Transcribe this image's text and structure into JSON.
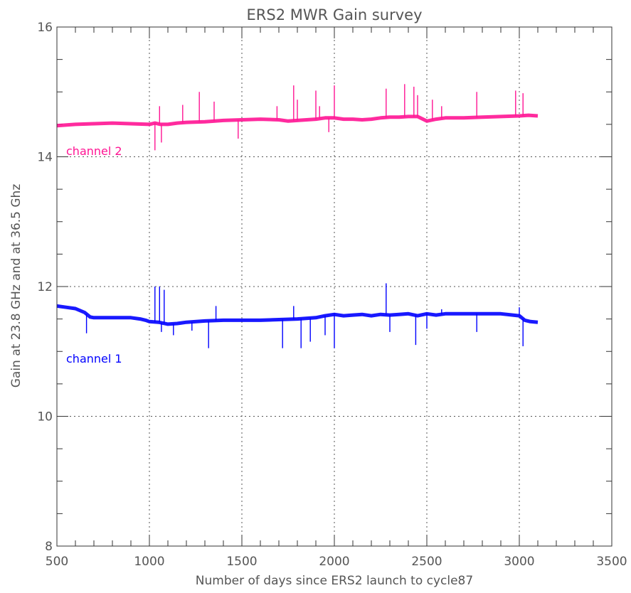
{
  "chart_data": {
    "type": "line",
    "title": "ERS2  MWR  Gain survey",
    "xlabel": "Number of days since ERS2 launch to cycle87",
    "ylabel": "Gain at 23.8 GHz and at 36.5 Ghz",
    "xlim": [
      500,
      3500
    ],
    "ylim": [
      8,
      16
    ],
    "x_ticks": [
      500,
      1000,
      1500,
      2000,
      2500,
      3000,
      3500
    ],
    "x_tick_labels": [
      "500",
      "1000",
      "1500",
      "2000",
      "2500",
      "3000",
      "3500"
    ],
    "y_ticks": [
      8,
      10,
      12,
      14,
      16
    ],
    "y_tick_labels": [
      "8",
      "10",
      "12",
      "14",
      "16"
    ],
    "x_gridlines": [
      1000,
      1500,
      2000,
      2500,
      3000
    ],
    "y_gridlines": [
      10,
      12,
      14
    ],
    "grid": "dotted",
    "annotations": [
      {
        "text": "channel 2",
        "series": "channel 2"
      },
      {
        "text": "channel 1",
        "series": "channel 1"
      }
    ],
    "series": [
      {
        "name": "channel 2",
        "color": "#ff1493",
        "x": [
          500,
          600,
          700,
          800,
          900,
          1000,
          1030,
          1060,
          1100,
          1150,
          1200,
          1300,
          1400,
          1500,
          1600,
          1700,
          1750,
          1800,
          1850,
          1900,
          1950,
          2000,
          2050,
          2100,
          2150,
          2200,
          2250,
          2300,
          2350,
          2400,
          2450,
          2500,
          2550,
          2600,
          2700,
          2800,
          2900,
          3000,
          3050,
          3100
        ],
        "y": [
          14.48,
          14.5,
          14.51,
          14.52,
          14.51,
          14.5,
          14.52,
          14.5,
          14.5,
          14.52,
          14.53,
          14.54,
          14.56,
          14.57,
          14.58,
          14.57,
          14.55,
          14.56,
          14.57,
          14.58,
          14.6,
          14.6,
          14.58,
          14.58,
          14.57,
          14.58,
          14.6,
          14.61,
          14.61,
          14.62,
          14.62,
          14.55,
          14.58,
          14.6,
          14.6,
          14.61,
          14.62,
          14.63,
          14.64,
          14.63
        ],
        "spikes": [
          {
            "x": 1030,
            "to": 14.1
          },
          {
            "x": 1055,
            "to": 14.78
          },
          {
            "x": 1065,
            "to": 14.22
          },
          {
            "x": 1180,
            "to": 14.8
          },
          {
            "x": 1270,
            "to": 15.0
          },
          {
            "x": 1350,
            "to": 14.85
          },
          {
            "x": 1480,
            "to": 14.28
          },
          {
            "x": 1690,
            "to": 14.78
          },
          {
            "x": 1780,
            "to": 15.1
          },
          {
            "x": 1800,
            "to": 14.88
          },
          {
            "x": 1900,
            "to": 15.02
          },
          {
            "x": 1920,
            "to": 14.78
          },
          {
            "x": 1970,
            "to": 14.38
          },
          {
            "x": 2000,
            "to": 15.1
          },
          {
            "x": 2280,
            "to": 15.05
          },
          {
            "x": 2380,
            "to": 15.12
          },
          {
            "x": 2430,
            "to": 15.08
          },
          {
            "x": 2450,
            "to": 14.95
          },
          {
            "x": 2530,
            "to": 14.88
          },
          {
            "x": 2580,
            "to": 14.78
          },
          {
            "x": 2770,
            "to": 15.0
          },
          {
            "x": 2980,
            "to": 15.02
          },
          {
            "x": 3020,
            "to": 14.98
          }
        ]
      },
      {
        "name": "channel 1",
        "color": "#0000ff",
        "x": [
          500,
          550,
          600,
          650,
          680,
          700,
          800,
          900,
          950,
          980,
          1000,
          1050,
          1100,
          1150,
          1200,
          1300,
          1400,
          1500,
          1600,
          1700,
          1800,
          1900,
          1950,
          2000,
          2050,
          2100,
          2150,
          2200,
          2250,
          2300,
          2350,
          2400,
          2450,
          2500,
          2550,
          2600,
          2700,
          2800,
          2900,
          3000,
          3030,
          3060,
          3100
        ],
        "y": [
          11.7,
          11.68,
          11.66,
          11.6,
          11.53,
          11.52,
          11.52,
          11.52,
          11.5,
          11.48,
          11.46,
          11.45,
          11.42,
          11.43,
          11.45,
          11.47,
          11.48,
          11.48,
          11.48,
          11.49,
          11.5,
          11.52,
          11.55,
          11.57,
          11.55,
          11.56,
          11.57,
          11.55,
          11.57,
          11.56,
          11.57,
          11.58,
          11.55,
          11.58,
          11.56,
          11.58,
          11.58,
          11.58,
          11.58,
          11.55,
          11.48,
          11.46,
          11.45
        ],
        "spikes": [
          {
            "x": 660,
            "to": 11.28
          },
          {
            "x": 1030,
            "to": 12.0
          },
          {
            "x": 1055,
            "to": 12.0
          },
          {
            "x": 1065,
            "to": 11.3
          },
          {
            "x": 1080,
            "to": 11.95
          },
          {
            "x": 1130,
            "to": 11.25
          },
          {
            "x": 1230,
            "to": 11.32
          },
          {
            "x": 1320,
            "to": 11.05
          },
          {
            "x": 1360,
            "to": 11.7
          },
          {
            "x": 1720,
            "to": 11.05
          },
          {
            "x": 1780,
            "to": 11.7
          },
          {
            "x": 1820,
            "to": 11.05
          },
          {
            "x": 1870,
            "to": 11.15
          },
          {
            "x": 1950,
            "to": 11.25
          },
          {
            "x": 2000,
            "to": 11.05
          },
          {
            "x": 2280,
            "to": 12.05
          },
          {
            "x": 2300,
            "to": 11.3
          },
          {
            "x": 2440,
            "to": 11.1
          },
          {
            "x": 2500,
            "to": 11.35
          },
          {
            "x": 2580,
            "to": 11.65
          },
          {
            "x": 2770,
            "to": 11.3
          },
          {
            "x": 3000,
            "to": 11.68
          },
          {
            "x": 3020,
            "to": 11.08
          }
        ]
      }
    ]
  }
}
